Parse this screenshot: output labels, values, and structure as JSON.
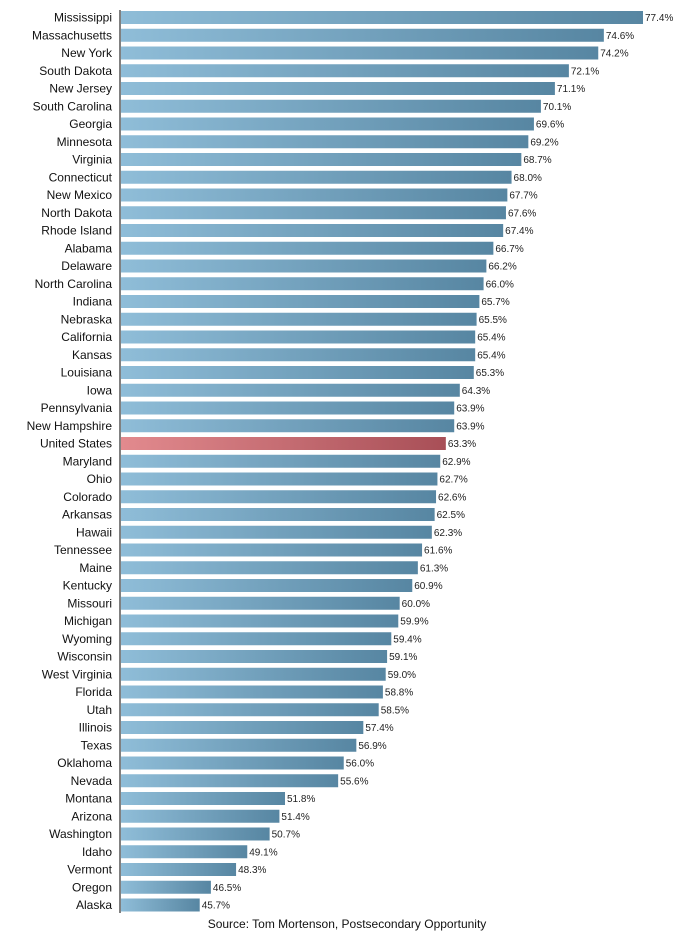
{
  "chart_data": {
    "type": "bar",
    "orientation": "horizontal",
    "categories": [
      "Mississippi",
      "Massachusetts",
      "New York",
      "South Dakota",
      "New Jersey",
      "South Carolina",
      "Georgia",
      "Minnesota",
      "Virginia",
      "Connecticut",
      "New Mexico",
      "North Dakota",
      "Rhode Island",
      "Alabama",
      "Delaware",
      "North Carolina",
      "Indiana",
      "Nebraska",
      "California",
      "Kansas",
      "Louisiana",
      "Iowa",
      "Pennsylvania",
      "New Hampshire",
      "United States",
      "Maryland",
      "Ohio",
      "Colorado",
      "Arkansas",
      "Hawaii",
      "Tennessee",
      "Maine",
      "Kentucky",
      "Missouri",
      "Michigan",
      "Wyoming",
      "Wisconsin",
      "West Virginia",
      "Florida",
      "Utah",
      "Illinois",
      "Texas",
      "Oklahoma",
      "Nevada",
      "Montana",
      "Arizona",
      "Washington",
      "Idaho",
      "Vermont",
      "Oregon",
      "Alaska"
    ],
    "values": [
      77.4,
      74.6,
      74.2,
      72.1,
      71.1,
      70.1,
      69.6,
      69.2,
      68.7,
      68.0,
      67.7,
      67.6,
      67.4,
      66.7,
      66.2,
      66.0,
      65.7,
      65.5,
      65.4,
      65.4,
      65.3,
      64.3,
      63.9,
      63.9,
      63.3,
      62.9,
      62.7,
      62.6,
      62.5,
      62.3,
      61.6,
      61.3,
      60.9,
      60.0,
      59.9,
      59.4,
      59.1,
      59.0,
      58.8,
      58.5,
      57.4,
      56.9,
      56.0,
      55.6,
      51.8,
      51.4,
      50.7,
      49.1,
      48.3,
      46.5,
      45.7
    ],
    "value_labels": [
      "77.4%",
      "74.6%",
      "74.2%",
      "72.1%",
      "71.1%",
      "70.1%",
      "69.6%",
      "69.2%",
      "68.7%",
      "68.0%",
      "67.7%",
      "67.6%",
      "67.4%",
      "66.7%",
      "66.2%",
      "66.0%",
      "65.7%",
      "65.5%",
      "65.4%",
      "65.4%",
      "65.3%",
      "64.3%",
      "63.9%",
      "63.9%",
      "63.3%",
      "62.9%",
      "62.7%",
      "62.6%",
      "62.5%",
      "62.3%",
      "61.6%",
      "61.3%",
      "60.9%",
      "60.0%",
      "59.9%",
      "59.4%",
      "59.1%",
      "59.0%",
      "58.8%",
      "58.5%",
      "57.4%",
      "56.9%",
      "56.0%",
      "55.6%",
      "51.8%",
      "51.4%",
      "50.7%",
      "49.1%",
      "48.3%",
      "46.5%",
      "45.7%"
    ],
    "highlight_category": "United States",
    "xlim": [
      40,
      77.4
    ],
    "grid": false,
    "legend": "none",
    "colors": {
      "bar_light": "#8fbdd8",
      "bar_dark": "#5786a2",
      "highlight_light": "#e28a8e",
      "highlight_dark": "#a84f57",
      "axis": "#000000"
    }
  },
  "source": "Source: Tom Mortenson, Postsecondary Opportunity"
}
